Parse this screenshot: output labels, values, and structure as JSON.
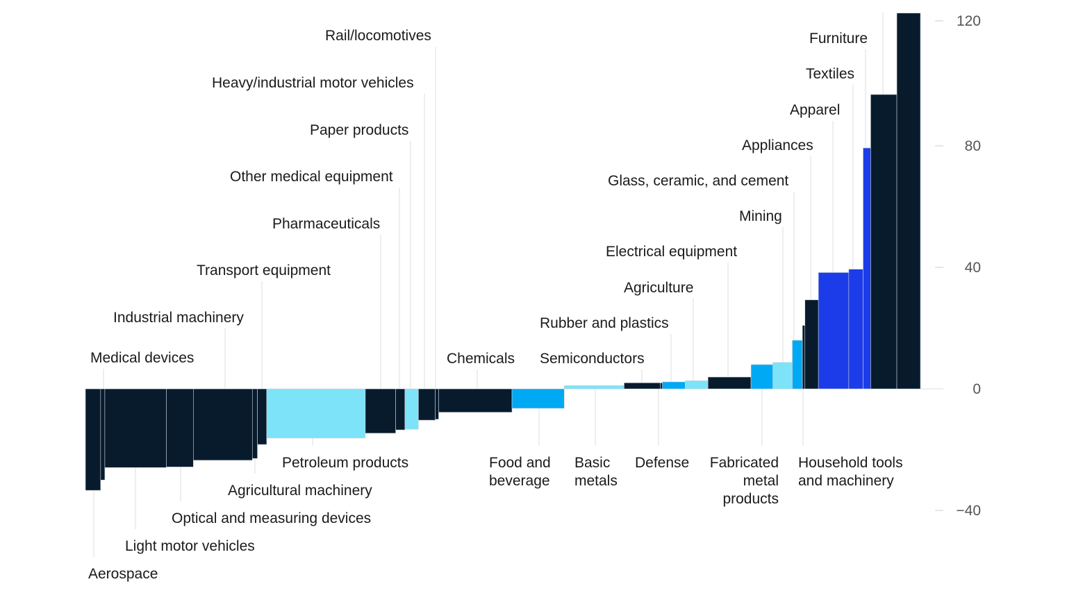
{
  "chart_data": {
    "type": "bar",
    "variant": "variable-width (marimekko) bar",
    "title": "",
    "xlabel": "",
    "ylabel": "",
    "ylim": [
      -45,
      125
    ],
    "yticks": [
      "120",
      "80",
      "40",
      "0",
      "−40"
    ],
    "ytick_values": [
      120,
      80,
      40,
      0,
      -40
    ],
    "grid": false,
    "colors": {
      "navy": "#071b2c",
      "light_cyan": "#7de3f8",
      "bright_blue": "#00a9f4",
      "royal_blue": "#1b3ce8"
    },
    "bars": [
      {
        "label": "Aerospace",
        "value": -33.4,
        "relative_width": 1.8,
        "color": "navy"
      },
      {
        "label": "Medical devices",
        "value": -30.0,
        "relative_width": 0.5,
        "color": "navy"
      },
      {
        "label": "Light motor vehicles",
        "value": -25.9,
        "relative_width": 7.3,
        "color": "navy"
      },
      {
        "label": "Optical and measuring devices",
        "value": -25.7,
        "relative_width": 3.2,
        "color": "navy"
      },
      {
        "label": "Industrial machinery",
        "value": -23.5,
        "relative_width": 7.0,
        "color": "navy"
      },
      {
        "label": "Agricultural machinery",
        "value": -22.9,
        "relative_width": 0.6,
        "color": "navy"
      },
      {
        "label": "Transport equipment",
        "value": -18.3,
        "relative_width": 1.1,
        "color": "navy"
      },
      {
        "label": "Petroleum products",
        "value": -16.2,
        "relative_width": 11.7,
        "color": "light_cyan"
      },
      {
        "label": "Pharmaceuticals",
        "value": -14.6,
        "relative_width": 3.6,
        "color": "navy"
      },
      {
        "label": "Other medical equipment",
        "value": -13.5,
        "relative_width": 1.1,
        "color": "navy"
      },
      {
        "label": "Paper products",
        "value": -13.3,
        "relative_width": 1.6,
        "color": "light_cyan"
      },
      {
        "label": "Heavy/industrial motor vehicles",
        "value": -10.3,
        "relative_width": 2.0,
        "color": "navy"
      },
      {
        "label": "Rail/locomotives",
        "value": -10.0,
        "relative_width": 0.4,
        "color": "navy"
      },
      {
        "label": "Chemicals",
        "value": -7.7,
        "relative_width": 8.7,
        "color": "navy"
      },
      {
        "label": "Food and beverage",
        "value": -6.4,
        "relative_width": 6.2,
        "color": "bright_blue"
      },
      {
        "label": "Basic metals",
        "value": 1.1,
        "relative_width": 7.1,
        "color": "light_cyan"
      },
      {
        "label": "Semiconductors",
        "value": 2.0,
        "relative_width": 4.3,
        "color": "navy"
      },
      {
        "label": "Defense",
        "value": 2.0,
        "relative_width": 0.25,
        "color": "navy"
      },
      {
        "label": "Rubber and plastics",
        "value": 2.3,
        "relative_width": 2.7,
        "color": "bright_blue"
      },
      {
        "label": "Agriculture",
        "value": 2.7,
        "relative_width": 2.7,
        "color": "light_cyan"
      },
      {
        "label": "Electrical equipment",
        "value": 3.9,
        "relative_width": 5.1,
        "color": "navy"
      },
      {
        "label": "Fabricated metal products",
        "value": 8.0,
        "relative_width": 2.6,
        "color": "bright_blue"
      },
      {
        "label": "Mining",
        "value": 8.7,
        "relative_width": 2.3,
        "color": "light_cyan"
      },
      {
        "label": "Glass, ceramic, and cement",
        "value": 16.0,
        "relative_width": 1.2,
        "color": "bright_blue"
      },
      {
        "label": "Household tools and machinery",
        "value": 20.9,
        "relative_width": 0.3,
        "color": "navy"
      },
      {
        "label": "Appliances",
        "value": 29.3,
        "relative_width": 1.6,
        "color": "navy"
      },
      {
        "label": "Apparel",
        "value": 38.3,
        "relative_width": 3.6,
        "color": "royal_blue"
      },
      {
        "label": "Textiles",
        "value": 39.4,
        "relative_width": 1.7,
        "color": "royal_blue"
      },
      {
        "label": "Furniture",
        "value": 79.3,
        "relative_width": 0.9,
        "color": "royal_blue"
      },
      {
        "label": "",
        "value": 96.9,
        "relative_width": 3.1,
        "color": "navy"
      },
      {
        "label": "",
        "value": 123.7,
        "relative_width": 2.8,
        "color": "navy"
      }
    ]
  }
}
